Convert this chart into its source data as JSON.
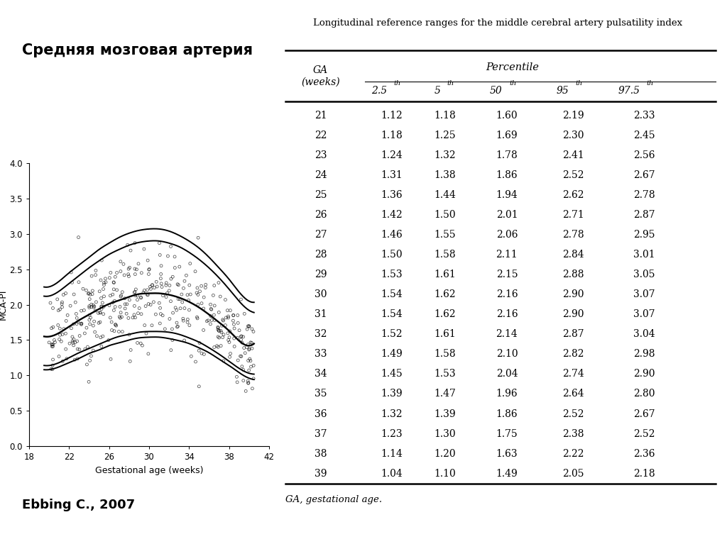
{
  "title_left": "Средняя мозговая артерия",
  "table_title": "Longitudinal reference ranges for the middle cerebral artery pulsatility index",
  "footnote": "GA, gestational age.",
  "author": "Ebbing C., 2007",
  "percentile_cols": [
    "2.5",
    "5",
    "50",
    "95",
    "97.5"
  ],
  "table_data": [
    [
      21,
      1.12,
      1.18,
      1.6,
      2.19,
      2.33
    ],
    [
      22,
      1.18,
      1.25,
      1.69,
      2.3,
      2.45
    ],
    [
      23,
      1.24,
      1.32,
      1.78,
      2.41,
      2.56
    ],
    [
      24,
      1.31,
      1.38,
      1.86,
      2.52,
      2.67
    ],
    [
      25,
      1.36,
      1.44,
      1.94,
      2.62,
      2.78
    ],
    [
      26,
      1.42,
      1.5,
      2.01,
      2.71,
      2.87
    ],
    [
      27,
      1.46,
      1.55,
      2.06,
      2.78,
      2.95
    ],
    [
      28,
      1.5,
      1.58,
      2.11,
      2.84,
      3.01
    ],
    [
      29,
      1.53,
      1.61,
      2.15,
      2.88,
      3.05
    ],
    [
      30,
      1.54,
      1.62,
      2.16,
      2.9,
      3.07
    ],
    [
      31,
      1.54,
      1.62,
      2.16,
      2.9,
      3.07
    ],
    [
      32,
      1.52,
      1.61,
      2.14,
      2.87,
      3.04
    ],
    [
      33,
      1.49,
      1.58,
      2.1,
      2.82,
      2.98
    ],
    [
      34,
      1.45,
      1.53,
      2.04,
      2.74,
      2.9
    ],
    [
      35,
      1.39,
      1.47,
      1.96,
      2.64,
      2.8
    ],
    [
      36,
      1.32,
      1.39,
      1.86,
      2.52,
      2.67
    ],
    [
      37,
      1.23,
      1.3,
      1.75,
      2.38,
      2.52
    ],
    [
      38,
      1.14,
      1.2,
      1.63,
      2.22,
      2.36
    ],
    [
      39,
      1.04,
      1.1,
      1.49,
      2.05,
      2.18
    ]
  ],
  "plot_xlabel": "Gestational age (weeks)",
  "plot_ylabel": "MCA-PI",
  "plot_xlim": [
    18,
    42
  ],
  "plot_ylim": [
    0.0,
    4.0
  ],
  "plot_xticks": [
    18,
    22,
    26,
    30,
    34,
    38,
    42
  ],
  "plot_yticks": [
    0.0,
    0.5,
    1.0,
    1.5,
    2.0,
    2.5,
    3.0,
    3.5,
    4.0
  ],
  "bg_color": "#ffffff"
}
